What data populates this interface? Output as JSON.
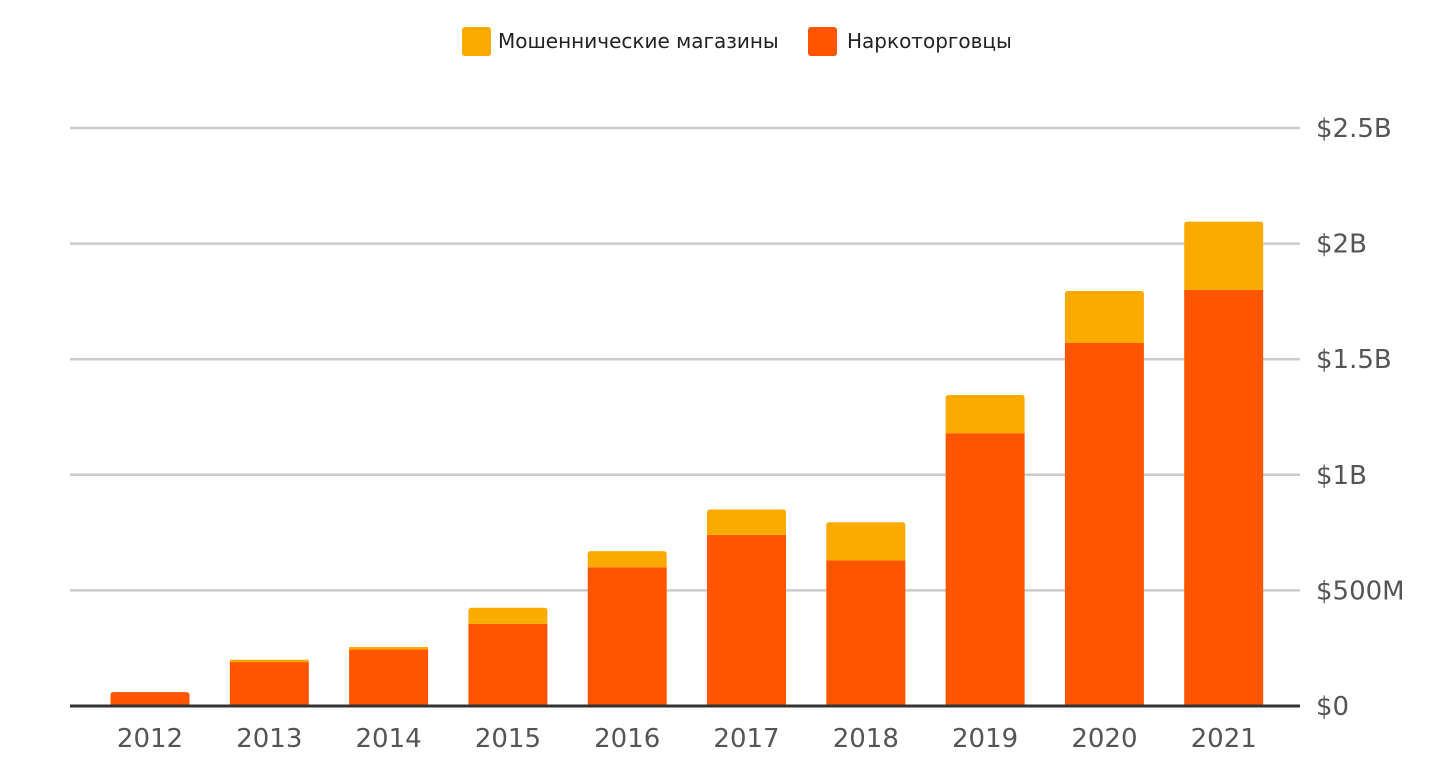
{
  "chart_data": {
    "type": "bar",
    "stacked": true,
    "title": "",
    "xlabel": "",
    "ylabel": "",
    "categories": [
      "2012",
      "2013",
      "2014",
      "2015",
      "2016",
      "2017",
      "2018",
      "2019",
      "2020",
      "2021"
    ],
    "series": [
      {
        "name": "Наркоторговцы",
        "color": "#ff5500",
        "values": [
          60,
          190,
          245,
          355,
          600,
          740,
          630,
          1180,
          1570,
          1800
        ]
      },
      {
        "name": "Мошеннические магазины",
        "color": "#fbab00",
        "values": [
          0,
          10,
          10,
          70,
          70,
          110,
          165,
          165,
          225,
          295
        ]
      }
    ],
    "ylim": [
      0,
      2500
    ],
    "yticks": [
      0,
      500,
      1000,
      1500,
      2000,
      2500
    ],
    "ytick_labels": [
      "$0",
      "$500M",
      "$1B",
      "$1.5B",
      "$2B",
      "$2.5B"
    ],
    "y_axis_position": "right",
    "grid": true,
    "legend": {
      "placement": "top-center",
      "entries": [
        {
          "label": "Мошеннические магазины",
          "color": "#fbab00"
        },
        {
          "label": "Наркоторговцы",
          "color": "#ff5500"
        }
      ]
    }
  }
}
